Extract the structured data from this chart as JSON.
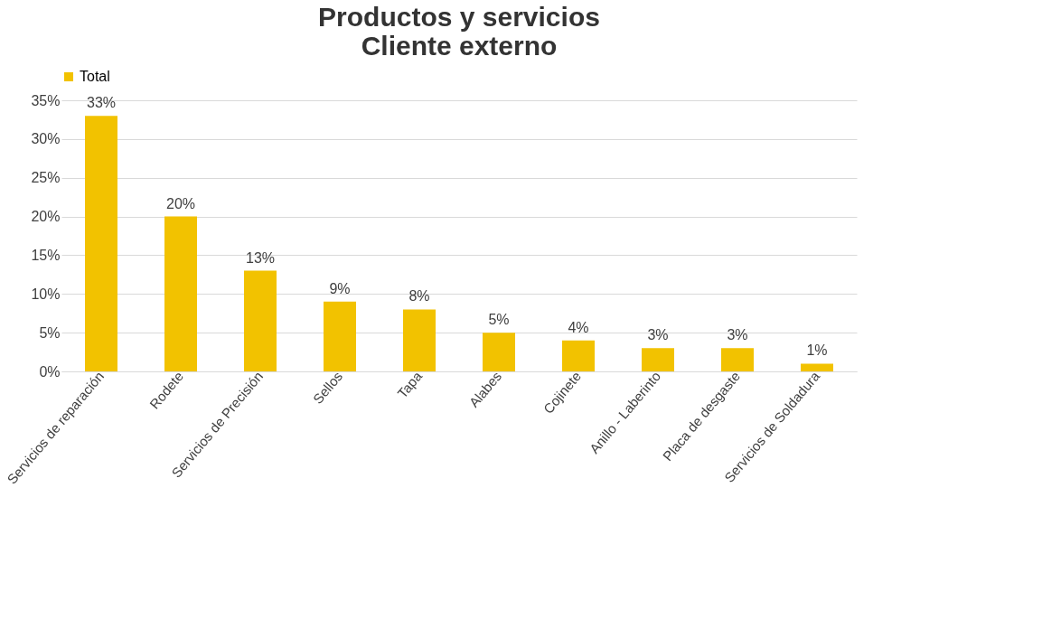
{
  "chart_data": {
    "type": "bar",
    "title": "Productos y servicios\nCliente externo",
    "categories": [
      "Servicios de reparación",
      "Rodete",
      "Servicios de Precisión",
      "Sellos",
      "Tapa",
      "Alabes",
      "Cojinete",
      "Anillo - Laberinto",
      "Placa de desgaste",
      "Servicios de Soldadura"
    ],
    "series": [
      {
        "name": "Total",
        "color": "#f2c200",
        "values": [
          33,
          20,
          13,
          9,
          8,
          5,
          4,
          3,
          3,
          1
        ],
        "value_labels": [
          "33%",
          "20%",
          "13%",
          "9%",
          "8%",
          "5%",
          "4%",
          "3%",
          "3%",
          "1%"
        ]
      }
    ],
    "ylim": [
      0,
      35
    ],
    "yticks": [
      {
        "value": 0,
        "label": "0%"
      },
      {
        "value": 5,
        "label": "5%"
      },
      {
        "value": 10,
        "label": "10%"
      },
      {
        "value": 15,
        "label": "15%"
      },
      {
        "value": 20,
        "label": "20%"
      },
      {
        "value": 25,
        "label": "25%"
      },
      {
        "value": 30,
        "label": "30%"
      },
      {
        "value": 35,
        "label": "35%"
      }
    ],
    "grid": "y",
    "legend": "top"
  }
}
